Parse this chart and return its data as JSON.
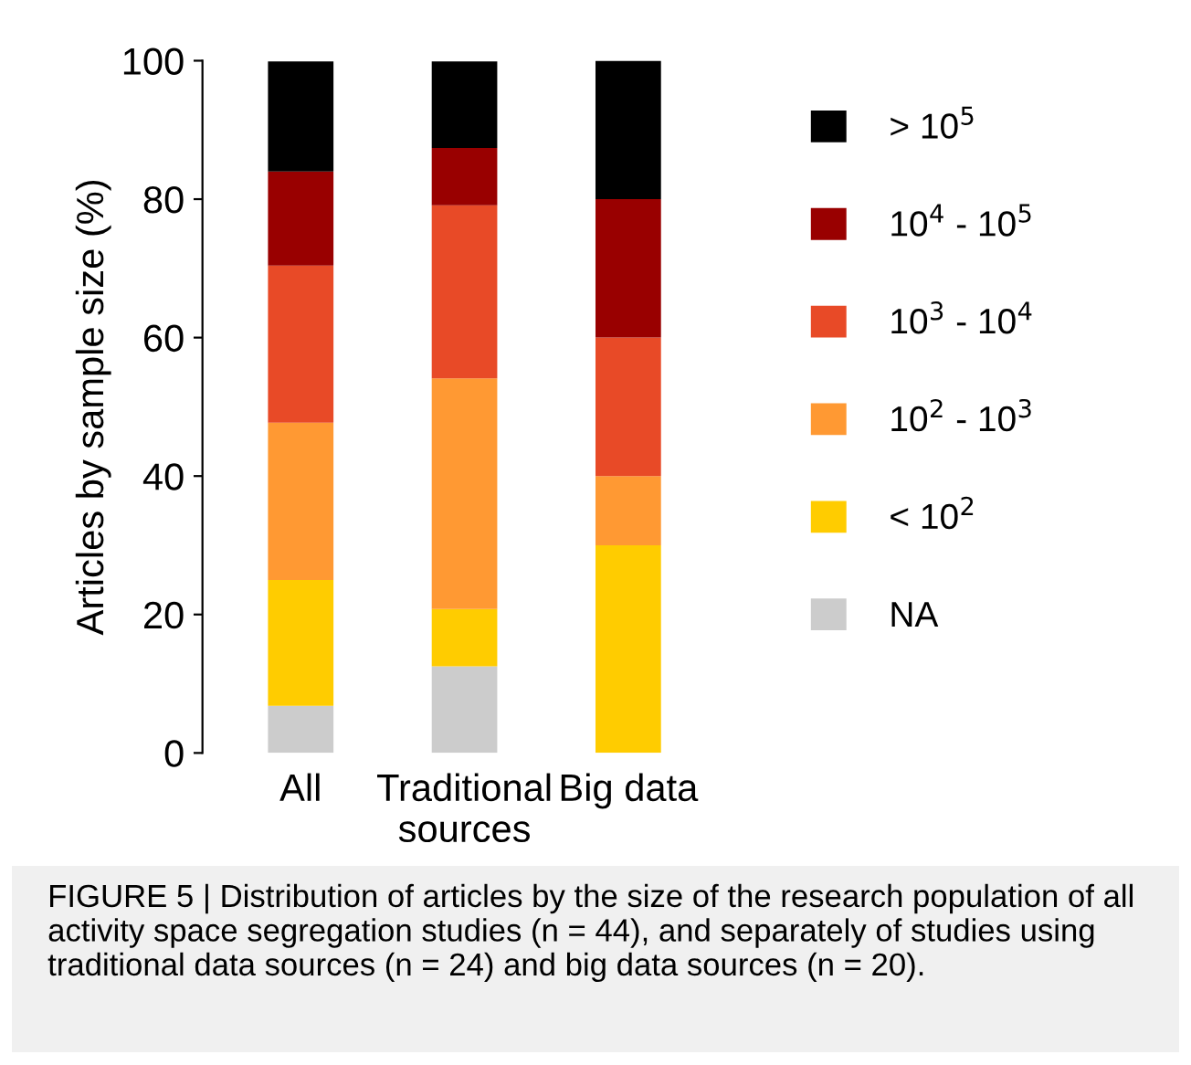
{
  "chart_data": {
    "type": "bar",
    "stacked": true,
    "ylabel": "Articles by sample size (%)",
    "categories": [
      "All",
      "Traditional\nsources",
      "Big data"
    ],
    "series": [
      {
        "name": "NA",
        "color": "#cccccc",
        "values": [
          6.8,
          12.5,
          0
        ]
      },
      {
        "name": "< 10$^{2}$",
        "color": "#ffcc00",
        "values": [
          18.2,
          8.3,
          30
        ]
      },
      {
        "name": "10$^{2}$ - 10$^{3}$",
        "color": "#ff9933",
        "values": [
          22.7,
          33.3,
          10
        ]
      },
      {
        "name": "10$^{3}$ - 10$^{4}$",
        "color": "#e84a27",
        "values": [
          22.7,
          25,
          20
        ]
      },
      {
        "name": "10$^{4}$ - 10$^{5}$",
        "color": "#990000",
        "values": [
          13.6,
          8.3,
          20
        ]
      },
      {
        "name": "> 10$^{5}$",
        "color": "#000000",
        "values": [
          15.9,
          12.5,
          20
        ]
      }
    ],
    "ylim": [
      0,
      100
    ],
    "yticks": [
      0,
      20,
      40,
      60,
      80,
      100
    ],
    "grid": false,
    "legend": "right",
    "annotations": [
      "FIGURE 5 | Distribution of articles by the size of the research population of all activity space segregation studies (n = 44), and separately of studies using traditional data sources (n = 24) and big data sources (n = 20)."
    ]
  }
}
